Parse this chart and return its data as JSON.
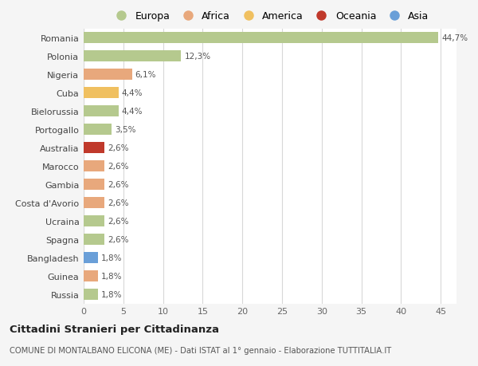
{
  "categories": [
    "Russia",
    "Guinea",
    "Bangladesh",
    "Spagna",
    "Ucraina",
    "Costa d'Avorio",
    "Gambia",
    "Marocco",
    "Australia",
    "Portogallo",
    "Bielorussia",
    "Cuba",
    "Nigeria",
    "Polonia",
    "Romania"
  ],
  "values": [
    1.8,
    1.8,
    1.8,
    2.6,
    2.6,
    2.6,
    2.6,
    2.6,
    2.6,
    3.5,
    4.4,
    4.4,
    6.1,
    12.3,
    44.7
  ],
  "labels": [
    "1,8%",
    "1,8%",
    "1,8%",
    "2,6%",
    "2,6%",
    "2,6%",
    "2,6%",
    "2,6%",
    "2,6%",
    "3,5%",
    "4,4%",
    "4,4%",
    "6,1%",
    "12,3%",
    "44,7%"
  ],
  "colors": [
    "#b5c98e",
    "#e8a87c",
    "#6a9fd8",
    "#b5c98e",
    "#b5c98e",
    "#e8a87c",
    "#e8a87c",
    "#e8a87c",
    "#c0392b",
    "#b5c98e",
    "#b5c98e",
    "#f0c060",
    "#e8a87c",
    "#b5c98e",
    "#b5c98e"
  ],
  "legend_labels": [
    "Europa",
    "Africa",
    "America",
    "Oceania",
    "Asia"
  ],
  "legend_colors": [
    "#b5c98e",
    "#e8a87c",
    "#f0c060",
    "#c0392b",
    "#6a9fd8"
  ],
  "title": "Cittadini Stranieri per Cittadinanza",
  "subtitle": "COMUNE DI MONTALBANO ELICONA (ME) - Dati ISTAT al 1° gennaio - Elaborazione TUTTITALIA.IT",
  "xlim": [
    0,
    47
  ],
  "xticks": [
    0,
    5,
    10,
    15,
    20,
    25,
    30,
    35,
    40,
    45
  ],
  "bg_color": "#f5f5f5",
  "plot_bg_color": "#ffffff",
  "grid_color": "#d8d8d8"
}
